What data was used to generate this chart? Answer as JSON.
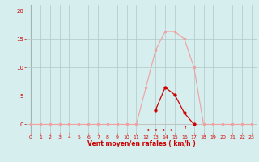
{
  "x_all": [
    0,
    1,
    2,
    3,
    4,
    5,
    6,
    7,
    8,
    9,
    10,
    11,
    12,
    13,
    14,
    15,
    16,
    17,
    18,
    19,
    20,
    21,
    22,
    23
  ],
  "y_moyen": [
    0,
    0,
    0,
    0,
    0,
    0,
    0,
    0,
    0,
    0,
    0,
    0,
    6.5,
    13,
    16.3,
    16.3,
    15,
    10,
    0,
    0,
    0,
    0,
    0,
    0
  ],
  "y_rafales_x": [
    13,
    14,
    15,
    16,
    17
  ],
  "y_rafales_y": [
    2.5,
    6.5,
    5.2,
    2.0,
    0
  ],
  "xlabel": "Vent moyen/en rafales ( km/h )",
  "xlim": [
    -0.5,
    23.5
  ],
  "ylim": [
    -1.5,
    21
  ],
  "yticks": [
    0,
    5,
    10,
    15,
    20
  ],
  "xticks": [
    0,
    1,
    2,
    3,
    4,
    5,
    6,
    7,
    8,
    9,
    10,
    11,
    12,
    13,
    14,
    15,
    16,
    17,
    18,
    19,
    20,
    21,
    22,
    23
  ],
  "bg_color": "#d6eeee",
  "grid_color": "#b0c8c8",
  "line_moyen_color": "#f0a0a0",
  "line_rafales_color": "#cc0000",
  "marker_moyen_color": "#f0a0a0",
  "marker_rafales_color": "#cc0000",
  "xlabel_color": "#cc0000",
  "tick_color": "#cc0000",
  "left_line_color": "#888888"
}
